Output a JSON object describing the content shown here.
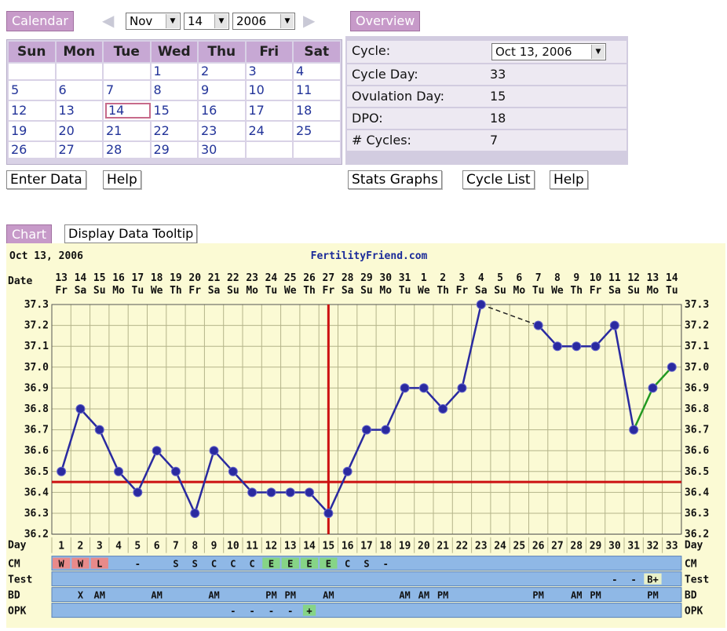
{
  "calendar": {
    "header": "Calendar",
    "month": "Nov",
    "day": "14",
    "year": "2006",
    "weekdays": [
      "Sun",
      "Mon",
      "Tue",
      "Wed",
      "Thu",
      "Fri",
      "Sat"
    ],
    "weeks": [
      [
        "",
        "",
        "",
        "1",
        "2",
        "3",
        "4"
      ],
      [
        "5",
        "6",
        "7",
        "8",
        "9",
        "10",
        "11"
      ],
      [
        "12",
        "13",
        "14",
        "15",
        "16",
        "17",
        "18"
      ],
      [
        "19",
        "20",
        "21",
        "22",
        "23",
        "24",
        "25"
      ],
      [
        "26",
        "27",
        "28",
        "29",
        "30",
        "",
        ""
      ]
    ],
    "selected": "14",
    "enter_data": "Enter Data",
    "help": "Help"
  },
  "overview": {
    "header": "Overview",
    "cycle_label": "Cycle:",
    "cycle_value": "Oct 13, 2006",
    "cycle_day_label": "Cycle Day:",
    "cycle_day_value": "33",
    "ovulation_label": "Ovulation Day:",
    "ovulation_value": "15",
    "dpo_label": "DPO:",
    "dpo_value": "18",
    "cycles_label": "# Cycles:",
    "cycles_value": "7",
    "stats_graphs": "Stats Graphs",
    "cycle_list": "Cycle List",
    "help": "Help"
  },
  "chart": {
    "header": "Chart",
    "tooltip_button": "Display Data Tooltip",
    "date_text": "Oct 13, 2006",
    "site": "FertilityFriend.com",
    "row_labels": {
      "date": "Date",
      "day": "Day",
      "cm": "CM",
      "test": "Test",
      "bd": "BD",
      "opk": "OPK"
    },
    "colors": {
      "temp_line": "#2a2aa0",
      "coverline": "#cc1111",
      "ovulation_line": "#cc1111",
      "post_line": "#229922",
      "grid": "#b4b48a",
      "chart_bg": "#fbfad4",
      "band_bg": "#8fb8e6"
    }
  },
  "chart_data": {
    "type": "line",
    "dates": [
      "13",
      "14",
      "15",
      "16",
      "17",
      "18",
      "19",
      "20",
      "21",
      "22",
      "23",
      "24",
      "25",
      "26",
      "27",
      "28",
      "29",
      "30",
      "31",
      "1",
      "2",
      "3",
      "4",
      "5",
      "6",
      "7",
      "8",
      "9",
      "10",
      "11",
      "12",
      "13",
      "14"
    ],
    "weekdays": [
      "Fr",
      "Sa",
      "Su",
      "Mo",
      "Tu",
      "We",
      "Th",
      "Fr",
      "Sa",
      "Su",
      "Mo",
      "Tu",
      "We",
      "Th",
      "Fr",
      "Sa",
      "Su",
      "Mo",
      "Tu",
      "We",
      "Th",
      "Fr",
      "Sa",
      "Su",
      "Mo",
      "Tu",
      "We",
      "Th",
      "Fr",
      "Sa",
      "Su",
      "Mo",
      "Tu"
    ],
    "x": [
      1,
      2,
      3,
      4,
      5,
      6,
      7,
      8,
      9,
      10,
      11,
      12,
      13,
      14,
      15,
      16,
      17,
      18,
      19,
      20,
      21,
      22,
      23,
      24,
      25,
      26,
      27,
      28,
      29,
      30,
      31,
      32,
      33
    ],
    "temps": [
      36.5,
      36.8,
      36.7,
      36.5,
      36.4,
      36.6,
      36.5,
      36.3,
      36.6,
      36.5,
      36.4,
      36.4,
      36.4,
      36.4,
      36.3,
      36.5,
      36.7,
      36.7,
      36.9,
      36.9,
      36.8,
      36.9,
      37.3,
      null,
      null,
      37.2,
      37.1,
      37.1,
      37.1,
      37.2,
      36.7,
      36.9,
      37.0
    ],
    "y_ticks": [
      "37.3",
      "37.2",
      "37.1",
      "37.0",
      "36.9",
      "36.8",
      "36.7",
      "36.6",
      "36.5",
      "36.4",
      "36.3",
      "36.2"
    ],
    "ylim": [
      36.2,
      37.3
    ],
    "coverline": 36.45,
    "ovulation_day": 15,
    "cm": [
      "W",
      "W",
      "L",
      "",
      "-",
      "",
      "S",
      "S",
      "C",
      "C",
      "C",
      "E",
      "E",
      "E",
      "E",
      "C",
      "S",
      "-",
      "",
      "",
      "",
      "",
      "",
      "",
      "",
      "",
      "",
      "",
      "",
      "",
      "",
      "",
      ""
    ],
    "test": [
      "",
      "",
      "",
      "",
      "",
      "",
      "",
      "",
      "",
      "",
      "",
      "",
      "",
      "",
      "",
      "",
      "",
      "",
      "",
      "",
      "",
      "",
      "",
      "",
      "",
      "",
      "",
      "",
      "",
      "-",
      "-",
      "B+",
      ""
    ],
    "bd": [
      "",
      "X",
      "AM",
      "",
      "",
      "AM",
      "",
      "",
      "AM",
      "",
      "",
      "PM",
      "PM",
      "",
      "AM",
      "",
      "",
      "",
      "AM",
      "AM",
      "PM",
      "",
      "",
      "",
      "",
      "PM",
      "",
      "AM",
      "PM",
      "",
      "",
      "PM",
      ""
    ],
    "opk": [
      "",
      "",
      "",
      "",
      "",
      "",
      "",
      "",
      "",
      "-",
      "-",
      "-",
      "-",
      "+",
      "",
      "",
      "",
      "",
      "",
      "",
      "",
      "",
      "",
      "",
      "",
      "",
      "",
      "",
      "",
      "",
      "",
      "",
      ""
    ]
  }
}
